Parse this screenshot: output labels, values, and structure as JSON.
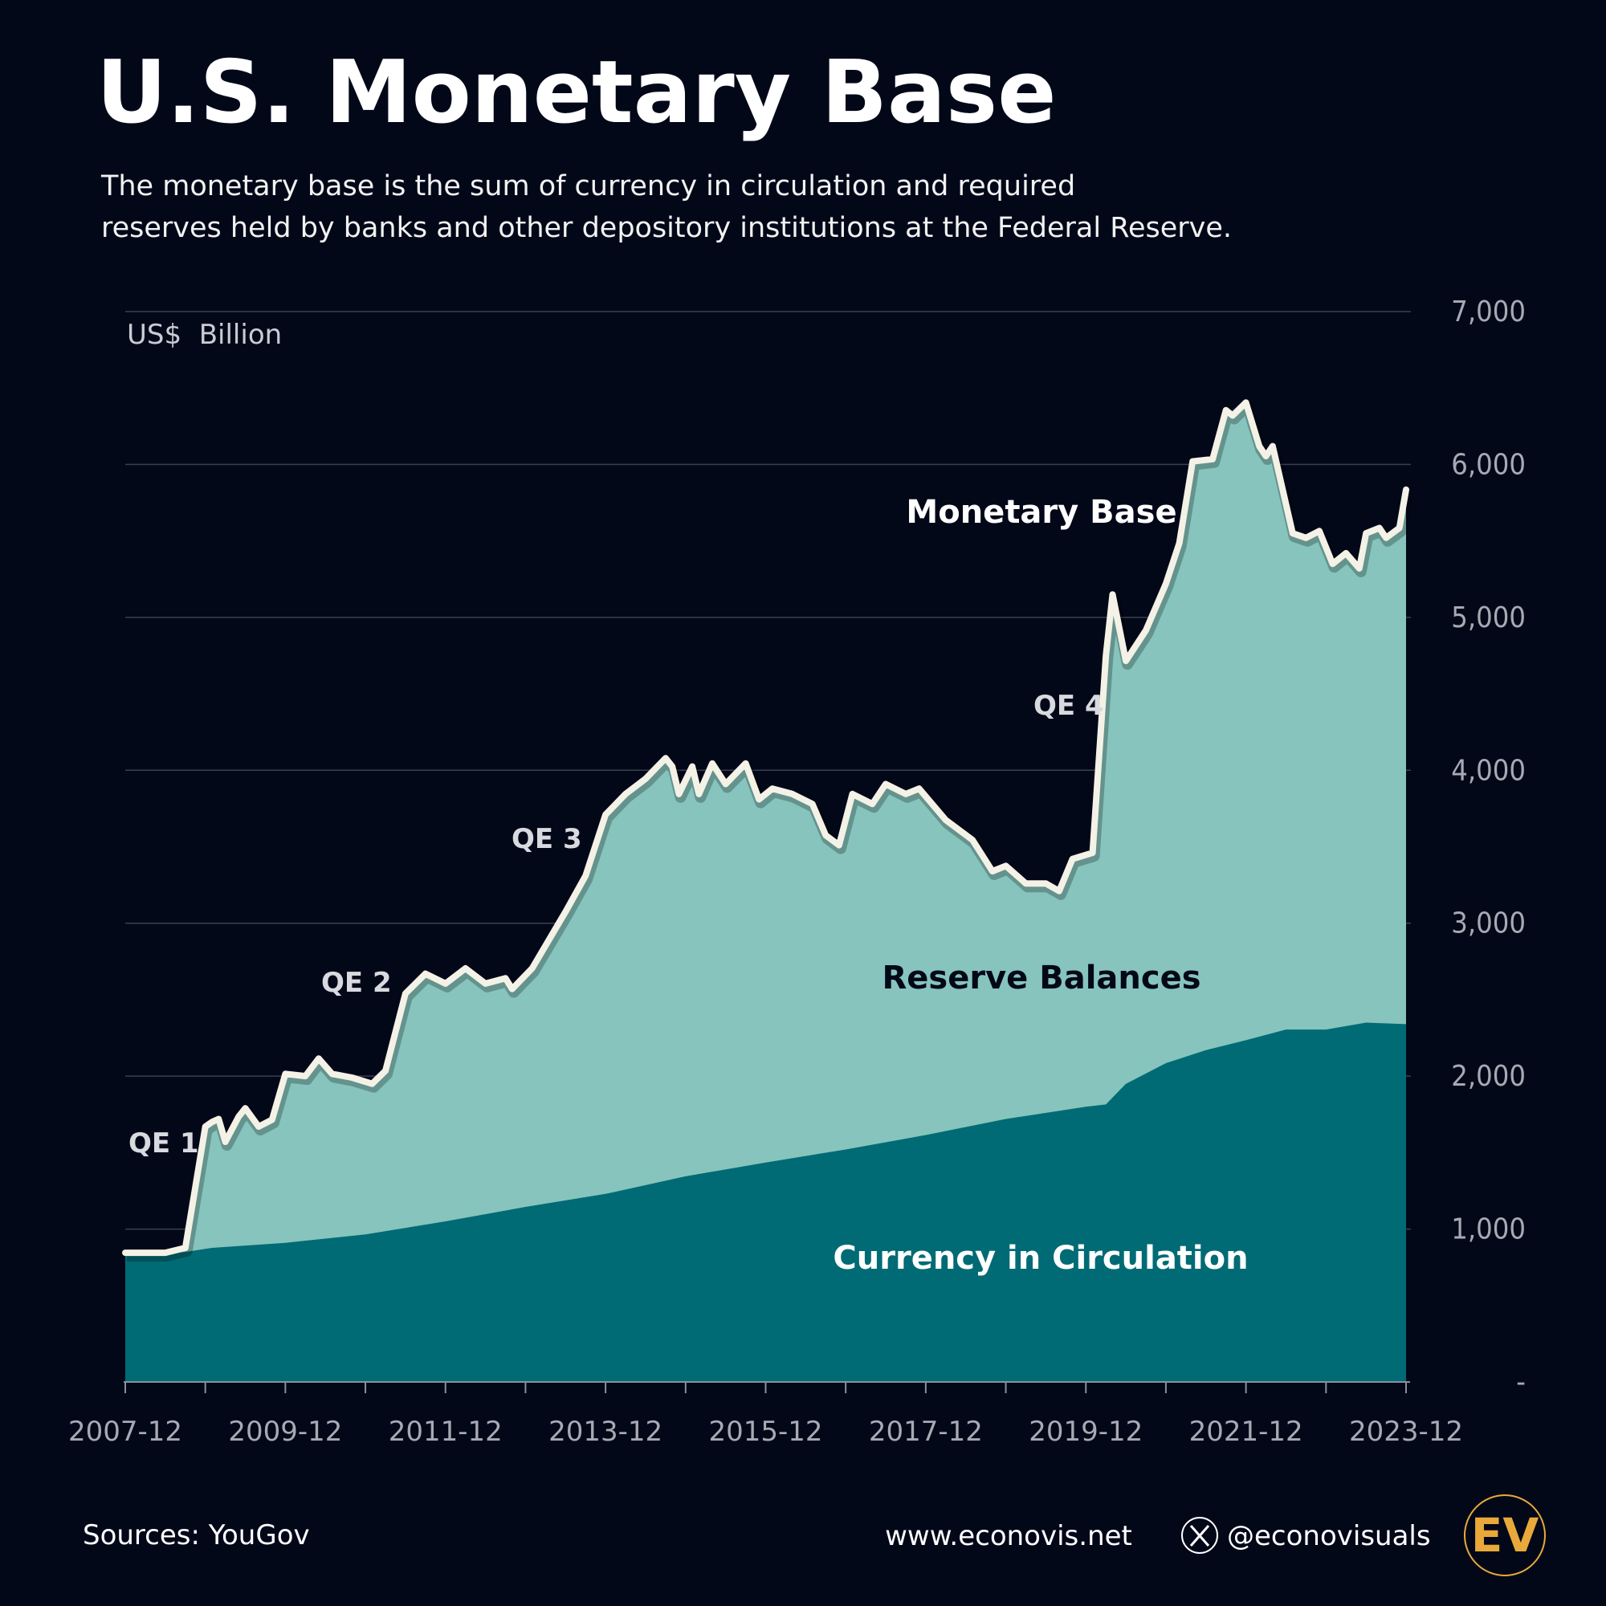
{
  "title": "U.S. Monetary Base",
  "subtitle": [
    "The monetary base is the sum of currency in circulation and required",
    "reserves held by banks and other depository institutions at the Federal Reserve."
  ],
  "footer": {
    "sources": "Sources: YouGov",
    "website": "www.econovis.net",
    "handle": "@econovisuals",
    "x_icon": "x-logo-icon",
    "logo_text": "EV"
  },
  "colors": {
    "background": "#030819",
    "reserve_area": "#86c4bd",
    "currency_area": "#006b75",
    "monetary_base_line": "#f4f1e6",
    "logo": "#e8a93a"
  },
  "chart_data": {
    "type": "area",
    "title": "U.S. Monetary Base",
    "ylabel": "US$  Billion",
    "xlabel": "",
    "ylim": [
      0,
      7000
    ],
    "xlim": [
      "2007-12",
      "2023-12"
    ],
    "grid": true,
    "y_axis_side": "right",
    "y_ticks": [
      "-",
      "1,000",
      "2,000",
      "3,000",
      "4,000",
      "5,000",
      "6,000",
      "7,000"
    ],
    "x_ticks": [
      "2007-12",
      "2009-12",
      "2011-12",
      "2013-12",
      "2015-12",
      "2017-12",
      "2019-12",
      "2021-12",
      "2023-12"
    ],
    "annotations": [
      {
        "text": "QE 1",
        "date": "2008-11"
      },
      {
        "text": "QE 2",
        "date": "2010-11"
      },
      {
        "text": "QE 3",
        "date": "2012-11"
      },
      {
        "text": "QE 4",
        "date": "2020-01"
      }
    ],
    "series": [
      {
        "name": "Monetary Base",
        "style": "line",
        "points": [
          [
            "2007-12",
            845
          ],
          [
            "2008-06",
            845
          ],
          [
            "2008-09",
            877
          ],
          [
            "2008-12",
            1670
          ],
          [
            "2009-01",
            1700
          ],
          [
            "2009-02",
            1720
          ],
          [
            "2009-03",
            1570
          ],
          [
            "2009-05",
            1735
          ],
          [
            "2009-06",
            1790
          ],
          [
            "2009-08",
            1670
          ],
          [
            "2009-10",
            1715
          ],
          [
            "2009-12",
            2015
          ],
          [
            "2010-03",
            2000
          ],
          [
            "2010-05",
            2115
          ],
          [
            "2010-07",
            2015
          ],
          [
            "2010-10",
            1990
          ],
          [
            "2011-01",
            1950
          ],
          [
            "2011-03",
            2035
          ],
          [
            "2011-06",
            2540
          ],
          [
            "2011-09",
            2670
          ],
          [
            "2011-12",
            2605
          ],
          [
            "2012-03",
            2705
          ],
          [
            "2012-06",
            2605
          ],
          [
            "2012-09",
            2640
          ],
          [
            "2012-10",
            2570
          ],
          [
            "2013-01",
            2705
          ],
          [
            "2013-06",
            3075
          ],
          [
            "2013-09",
            3310
          ],
          [
            "2013-12",
            3710
          ],
          [
            "2014-03",
            3845
          ],
          [
            "2014-06",
            3945
          ],
          [
            "2014-09",
            4080
          ],
          [
            "2014-10",
            4025
          ],
          [
            "2014-11",
            3845
          ],
          [
            "2015-01",
            4025
          ],
          [
            "2015-02",
            3845
          ],
          [
            "2015-04",
            4045
          ],
          [
            "2015-06",
            3910
          ],
          [
            "2015-09",
            4045
          ],
          [
            "2015-11",
            3810
          ],
          [
            "2016-01",
            3880
          ],
          [
            "2016-04",
            3845
          ],
          [
            "2016-07",
            3780
          ],
          [
            "2016-09",
            3575
          ],
          [
            "2016-11",
            3510
          ],
          [
            "2017-01",
            3845
          ],
          [
            "2017-04",
            3780
          ],
          [
            "2017-06",
            3910
          ],
          [
            "2017-09",
            3845
          ],
          [
            "2017-11",
            3880
          ],
          [
            "2018-03",
            3675
          ],
          [
            "2018-07",
            3545
          ],
          [
            "2018-10",
            3340
          ],
          [
            "2018-12",
            3375
          ],
          [
            "2019-03",
            3260
          ],
          [
            "2019-06",
            3260
          ],
          [
            "2019-08",
            3210
          ],
          [
            "2019-10",
            3420
          ],
          [
            "2020-01",
            3460
          ],
          [
            "2020-03",
            4750
          ],
          [
            "2020-04",
            5150
          ],
          [
            "2020-06",
            4715
          ],
          [
            "2020-09",
            4915
          ],
          [
            "2020-12",
            5220
          ],
          [
            "2021-02",
            5485
          ],
          [
            "2021-04",
            6020
          ],
          [
            "2021-07",
            6035
          ],
          [
            "2021-09",
            6355
          ],
          [
            "2021-10",
            6320
          ],
          [
            "2021-12",
            6405
          ],
          [
            "2022-02",
            6120
          ],
          [
            "2022-03",
            6055
          ],
          [
            "2022-04",
            6120
          ],
          [
            "2022-07",
            5550
          ],
          [
            "2022-09",
            5520
          ],
          [
            "2022-11",
            5565
          ],
          [
            "2023-01",
            5350
          ],
          [
            "2023-03",
            5420
          ],
          [
            "2023-05",
            5320
          ],
          [
            "2023-06",
            5550
          ],
          [
            "2023-08",
            5585
          ],
          [
            "2023-09",
            5520
          ],
          [
            "2023-11",
            5585
          ],
          [
            "2023-12",
            5835
          ]
        ]
      },
      {
        "name": "Reserve Balances",
        "style": "area between Currency in Circulation and Monetary Base"
      },
      {
        "name": "Currency in Circulation",
        "style": "area",
        "points": [
          [
            "2007-12",
            830
          ],
          [
            "2008-09",
            850
          ],
          [
            "2009-01",
            877
          ],
          [
            "2009-12",
            910
          ],
          [
            "2010-12",
            965
          ],
          [
            "2011-12",
            1050
          ],
          [
            "2012-12",
            1145
          ],
          [
            "2013-12",
            1230
          ],
          [
            "2014-12",
            1345
          ],
          [
            "2015-12",
            1435
          ],
          [
            "2016-12",
            1520
          ],
          [
            "2017-12",
            1615
          ],
          [
            "2018-12",
            1720
          ],
          [
            "2019-12",
            1800
          ],
          [
            "2020-03",
            1815
          ],
          [
            "2020-06",
            1950
          ],
          [
            "2020-12",
            2085
          ],
          [
            "2021-06",
            2170
          ],
          [
            "2021-12",
            2235
          ],
          [
            "2022-06",
            2305
          ],
          [
            "2022-12",
            2305
          ],
          [
            "2023-06",
            2350
          ],
          [
            "2023-12",
            2340
          ]
        ]
      }
    ]
  }
}
